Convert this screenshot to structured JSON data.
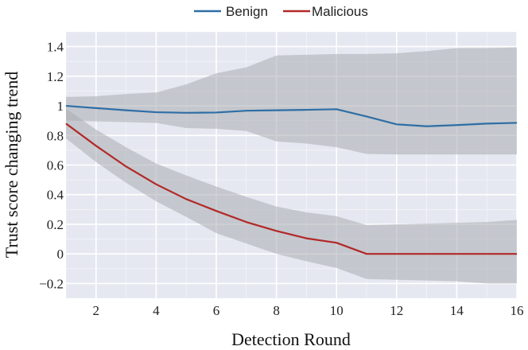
{
  "chart_data": {
    "type": "line",
    "title": "",
    "xlabel": "Detection Round",
    "ylabel": "Trust score changing trend",
    "xlim": [
      1,
      16
    ],
    "ylim": [
      -0.3,
      1.5
    ],
    "grid": true,
    "legend": "top-center",
    "x": [
      1,
      2,
      3,
      4,
      5,
      6,
      7,
      8,
      9,
      10,
      11,
      12,
      13,
      14,
      15,
      16
    ],
    "xticks": [
      2,
      4,
      6,
      8,
      10,
      12,
      14,
      16
    ],
    "xtick_labels": [
      "2",
      "4",
      "6",
      "8",
      "10",
      "12",
      "14",
      "16"
    ],
    "yticks": [
      -0.2,
      0,
      0.2,
      0.4,
      0.6,
      0.8,
      1,
      1.2,
      1.4
    ],
    "ytick_labels": [
      "−0.2",
      "0",
      "0.2",
      "0.4",
      "0.6",
      "0.8",
      "1",
      "1.2",
      "1.4"
    ],
    "series": [
      {
        "name": "Benign",
        "color": "#2e6ea6",
        "band_color": "#a9abb1",
        "values": [
          1.0,
          0.985,
          0.97,
          0.957,
          0.953,
          0.955,
          0.967,
          0.97,
          0.973,
          0.977,
          0.928,
          0.875,
          0.862,
          0.87,
          0.88,
          0.885
        ],
        "upper": [
          1.06,
          1.065,
          1.08,
          1.09,
          1.145,
          1.22,
          1.26,
          1.34,
          1.345,
          1.35,
          1.35,
          1.355,
          1.37,
          1.39,
          1.39,
          1.395
        ],
        "lower": [
          0.9,
          0.895,
          0.89,
          0.885,
          0.85,
          0.845,
          0.83,
          0.76,
          0.745,
          0.72,
          0.675,
          0.672,
          0.672,
          0.672,
          0.672,
          0.672
        ]
      },
      {
        "name": "Malicious",
        "color": "#b22828",
        "band_color": "#a9abb1",
        "values": [
          0.88,
          0.73,
          0.59,
          0.47,
          0.37,
          0.29,
          0.215,
          0.155,
          0.105,
          0.075,
          0.0,
          0.0,
          0.0,
          0.0,
          0.0,
          0.0
        ],
        "upper": [
          0.98,
          0.84,
          0.72,
          0.61,
          0.53,
          0.455,
          0.385,
          0.32,
          0.28,
          0.255,
          0.195,
          0.2,
          0.205,
          0.21,
          0.215,
          0.23
        ],
        "lower": [
          0.78,
          0.62,
          0.48,
          0.355,
          0.25,
          0.14,
          0.07,
          0.0,
          -0.05,
          -0.095,
          -0.17,
          -0.175,
          -0.18,
          -0.185,
          -0.2,
          -0.2
        ]
      }
    ]
  }
}
